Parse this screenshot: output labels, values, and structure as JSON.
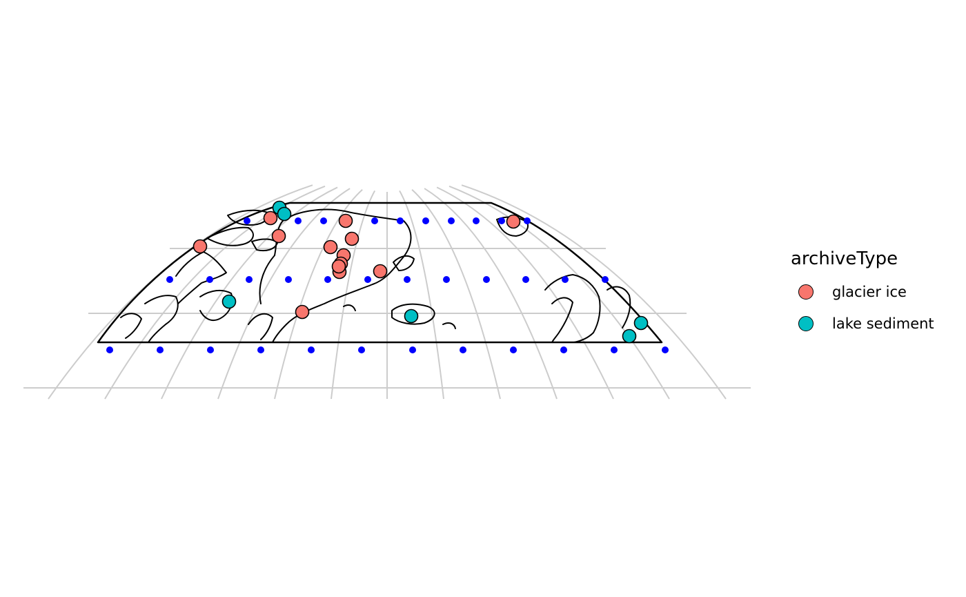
{
  "legend": {
    "title": "archiveType",
    "items": [
      {
        "label": "glacier ice",
        "color": "#F8766D"
      },
      {
        "label": "lake sediment",
        "color": "#00BFC4"
      }
    ]
  },
  "colors": {
    "graticule": "#cccccc",
    "grid_points": "#0000ff",
    "outline": "#000000"
  },
  "chart_data": {
    "type": "scatter",
    "map": "Northern-hemisphere polar region, curved conic projection with graticule and coastline outline",
    "legend_placement": "right",
    "grid_point_color": "#0000ff",
    "series": [
      {
        "name": "glacier ice",
        "color": "#F8766D",
        "points": [
          {
            "lon": -78,
            "lat": 81
          },
          {
            "lon": -74,
            "lat": 79
          },
          {
            "lon": -90,
            "lat": 78
          },
          {
            "lon": -43,
            "lat": 81
          },
          {
            "lon": -40,
            "lat": 78
          },
          {
            "lon": -43,
            "lat": 77
          },
          {
            "lon": -44,
            "lat": 75
          },
          {
            "lon": -45,
            "lat": 73
          },
          {
            "lon": -45,
            "lat": 72
          },
          {
            "lon": -46,
            "lat": 71
          },
          {
            "lon": -30,
            "lat": 71
          },
          {
            "lon": -64,
            "lat": 66
          },
          {
            "lon": 80,
            "lat": 80
          }
        ]
      },
      {
        "name": "lake sediment",
        "color": "#00BFC4",
        "points": [
          {
            "lon": -76,
            "lat": 84
          },
          {
            "lon": -73,
            "lat": 82
          },
          {
            "lon": -100,
            "lat": 68
          },
          {
            "lon": -19,
            "lat": 65
          },
          {
            "lon": 135,
            "lat": 62
          },
          {
            "lon": 128,
            "lat": 64
          }
        ]
      }
    ]
  }
}
